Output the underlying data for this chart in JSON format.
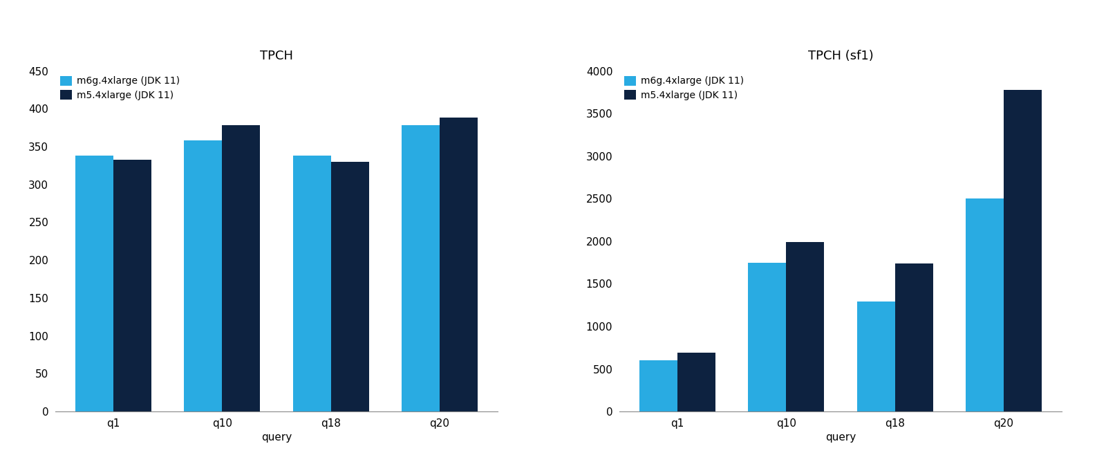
{
  "chart1": {
    "title": "TPCH",
    "categories": [
      "q1",
      "q10",
      "q18",
      "q20"
    ],
    "series1_label": "m6g.4xlarge (JDK 11)",
    "series2_label": "m5.4xlarge (JDK 11)",
    "series1_values": [
      338,
      358,
      338,
      378
    ],
    "series2_values": [
      333,
      378,
      330,
      388
    ],
    "ylim": [
      0,
      450
    ],
    "yticks": [
      0,
      50,
      100,
      150,
      200,
      250,
      300,
      350,
      400,
      450
    ],
    "xlabel": "query"
  },
  "chart2": {
    "title": "TPCH (sf1)",
    "categories": [
      "q1",
      "q10",
      "q18",
      "q20"
    ],
    "series1_label": "m6g.4xlarge (JDK 11)",
    "series2_label": "m5.4xlarge (JDK 11)",
    "series1_values": [
      600,
      1750,
      1290,
      2500
    ],
    "series2_values": [
      690,
      1990,
      1740,
      3780
    ],
    "ylim": [
      0,
      4000
    ],
    "yticks": [
      0,
      500,
      1000,
      1500,
      2000,
      2500,
      3000,
      3500,
      4000
    ],
    "xlabel": "query"
  },
  "color_light": "#29ABE2",
  "color_dark": "#0D2240",
  "bar_width": 0.35,
  "bg_color": "#FFFFFF",
  "title_fontsize": 13,
  "label_fontsize": 11,
  "tick_fontsize": 11,
  "legend_fontsize": 10
}
